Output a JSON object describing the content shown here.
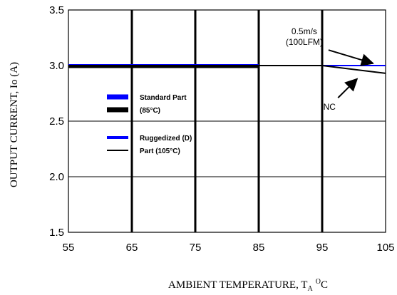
{
  "chart_data": {
    "type": "line",
    "title": "",
    "xlabel": "AMBIENT TEMPERATURE, T",
    "xlabel_sub": "A",
    "xlabel_sup": "O",
    "xlabel_unit": "C",
    "ylabel": "OUTPUT CURRENT, Io  (A)",
    "xlim": [
      55,
      105
    ],
    "ylim": [
      1.5,
      3.5
    ],
    "x_ticks": [
      55,
      65,
      75,
      85,
      95,
      105
    ],
    "x_tick_labels": [
      "55",
      "65",
      "75",
      "85",
      "95",
      "105"
    ],
    "y_ticks": [
      1.5,
      2.0,
      2.5,
      3.0,
      3.5
    ],
    "y_tick_labels": [
      "1.5",
      "2.0",
      "2.5",
      "3.0",
      "3.5"
    ],
    "grid": true,
    "legend": {
      "placement": "center-left",
      "groups": [
        {
          "label_lines": [
            "Standard Part",
            "(85°C)"
          ],
          "colors": [
            "#0000ff",
            "#000000"
          ],
          "weights": [
            "heavy",
            "heavy"
          ]
        },
        {
          "label_lines": [
            "Ruggedized (D)",
            "Part (105°C)"
          ],
          "colors": [
            "#0000ff",
            "#000000"
          ],
          "weights": [
            "light",
            "light"
          ]
        }
      ]
    },
    "series": [
      {
        "name": "Standard Part (85°C) 0.5m/s (100LFM)",
        "color": "#0000ff",
        "weight": "heavy",
        "x": [
          55,
          85
        ],
        "y": [
          3.0,
          3.0
        ]
      },
      {
        "name": "Standard Part (85°C) NC",
        "color": "#000000",
        "weight": "heavy",
        "x": [
          55,
          85
        ],
        "y": [
          2.99,
          2.99
        ]
      },
      {
        "name": "Ruggedized (D) Part (105°C) 0.5m/s (100LFM)",
        "color": "#0000ff",
        "weight": "light",
        "x": [
          55,
          85,
          95,
          105
        ],
        "y": [
          3.0,
          3.0,
          3.0,
          3.0
        ]
      },
      {
        "name": "Ruggedized (D) Part (105°C) NC",
        "color": "#000000",
        "weight": "light",
        "x": [
          55,
          95,
          105
        ],
        "y": [
          3.0,
          3.0,
          2.93
        ]
      }
    ],
    "annotations": [
      {
        "lines": [
          "0.5m/s",
          "(100LFM)"
        ],
        "arrow_from": [
          96,
          3.14
        ],
        "arrow_to": [
          103,
          3.02
        ]
      },
      {
        "lines": [
          "NC"
        ],
        "arrow_from": [
          97.5,
          2.71
        ],
        "arrow_to": [
          100.5,
          2.88
        ]
      }
    ]
  }
}
